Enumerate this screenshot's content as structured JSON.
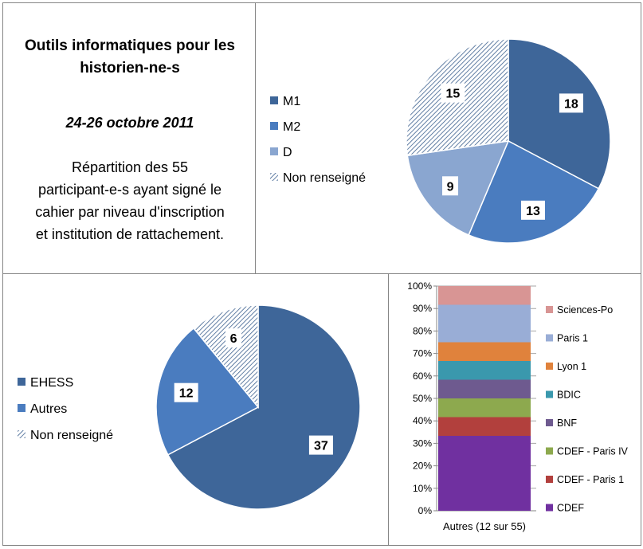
{
  "info": {
    "title_line1": "Outils informatiques pour les",
    "title_line2": "historien-ne-s",
    "date": "24-26 octobre 2011",
    "desc_line1": "Répartition des  55",
    "desc_line2": "participant-e-s ayant signé le",
    "desc_line3": "cahier par niveau d'inscription",
    "desc_line4": "et institution de rattachement."
  },
  "colors": {
    "dark_blue": "#3E6699",
    "mid_blue": "#4A7CBF",
    "light_blue": "#8AA6D0",
    "hatch": "#3B5F8E"
  },
  "chart_data": [
    {
      "type": "pie",
      "legend": "left",
      "slices": [
        {
          "label": "M1",
          "value": 18,
          "color": "#3E6699",
          "hatched": false
        },
        {
          "label": "M2",
          "value": 13,
          "color": "#4A7CBF",
          "hatched": false
        },
        {
          "label": "D",
          "value": 9,
          "color": "#8AA6D0",
          "hatched": false
        },
        {
          "label": "Non renseigné",
          "value": 15,
          "color": "#3B5F8E",
          "hatched": true
        }
      ]
    },
    {
      "type": "pie",
      "legend": "left",
      "slices": [
        {
          "label": "EHESS",
          "value": 37,
          "color": "#3E6699",
          "hatched": false
        },
        {
          "label": "Autres",
          "value": 12,
          "color": "#4A7CBF",
          "hatched": false
        },
        {
          "label": "Non renseigné",
          "value": 6,
          "color": "#3B5F8E",
          "hatched": true
        }
      ]
    },
    {
      "type": "bar",
      "stacked": "percent",
      "legend": "right",
      "categories": [
        "Autres (12 sur 55)"
      ],
      "ylim": [
        0,
        100
      ],
      "yticks": [
        "0%",
        "10%",
        "20%",
        "30%",
        "40%",
        "50%",
        "60%",
        "70%",
        "80%",
        "90%",
        "100%"
      ],
      "series": [
        {
          "name": "CDEF",
          "values": [
            4
          ],
          "color": "#7030A0"
        },
        {
          "name": "CDEF - Paris 1",
          "values": [
            1
          ],
          "color": "#B2403D"
        },
        {
          "name": "CDEF - Paris IV",
          "values": [
            1
          ],
          "color": "#8DA94E"
        },
        {
          "name": "BNF",
          "values": [
            1
          ],
          "color": "#6E5A8F"
        },
        {
          "name": "BDIC",
          "values": [
            1
          ],
          "color": "#3A98AD"
        },
        {
          "name": "Lyon 1",
          "values": [
            1
          ],
          "color": "#E0823C"
        },
        {
          "name": "Paris 1",
          "values": [
            2
          ],
          "color": "#99ADD6"
        },
        {
          "name": "Sciences-Po",
          "values": [
            1
          ],
          "color": "#D89594"
        }
      ]
    }
  ]
}
